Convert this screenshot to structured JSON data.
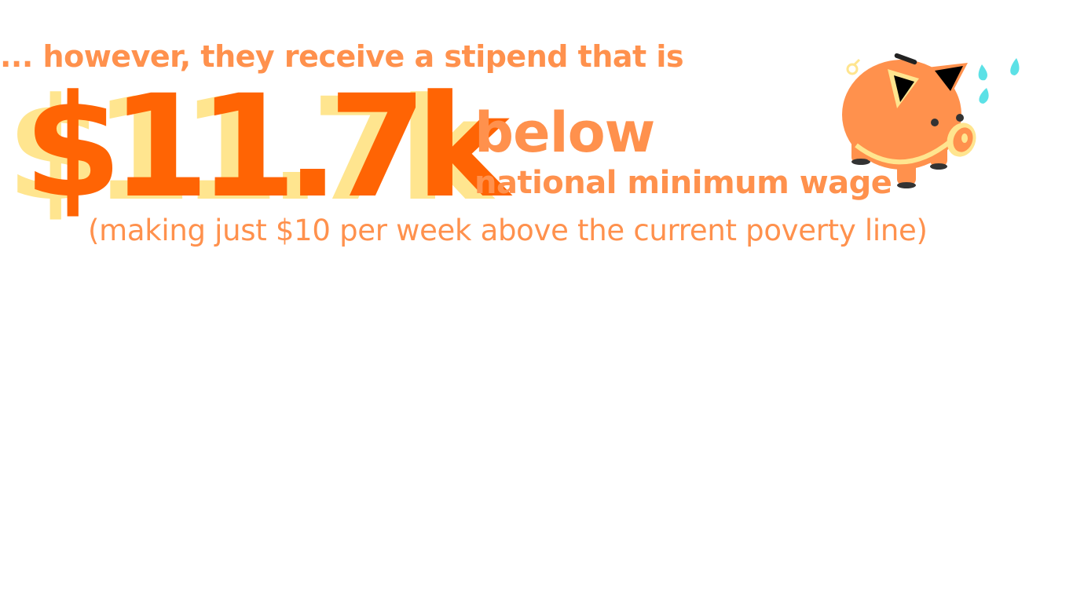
{
  "intro_text": "... however, they receive a stipend that is",
  "amount": "$11.7k",
  "below_word": "below",
  "comparison": "national minimum wage",
  "note": "(making just $10 per week above the current poverty line)",
  "colors": {
    "accent_dark": "#ff6404",
    "accent_light": "#ff914d",
    "shadow_yellow": "#ffe58f",
    "water_drop": "#5ce1e6"
  },
  "illustration": {
    "icon": "piggy-bank-icon",
    "sweat": "sweat-drops-icon"
  }
}
